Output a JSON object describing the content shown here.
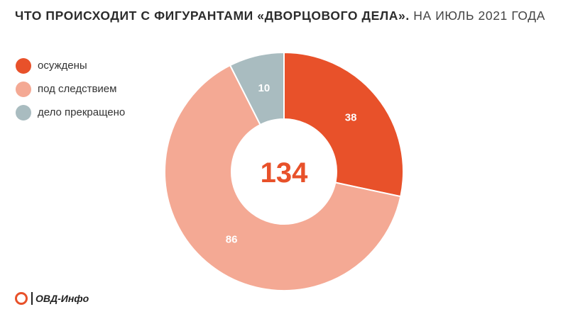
{
  "title": {
    "bold": "ЧТО ПРОИСХОДИТ С ФИГУРАНТАМИ «ДВОРЦОВОГО ДЕЛА».",
    "light": "НА ИЮЛЬ 2021 ГОДА"
  },
  "chart_data": {
    "type": "pie",
    "donut": true,
    "total": 134,
    "center_label": "134",
    "legend_position": "top-left",
    "slices": [
      {
        "label": "осуждены",
        "value": 38,
        "color": "#e8512a"
      },
      {
        "label": "под следствием",
        "value": 86,
        "color": "#f4a994"
      },
      {
        "label": "дело прекращено",
        "value": 10,
        "color": "#a9bcc0"
      }
    ]
  },
  "logo": {
    "text": "ОВД-Инфо"
  }
}
